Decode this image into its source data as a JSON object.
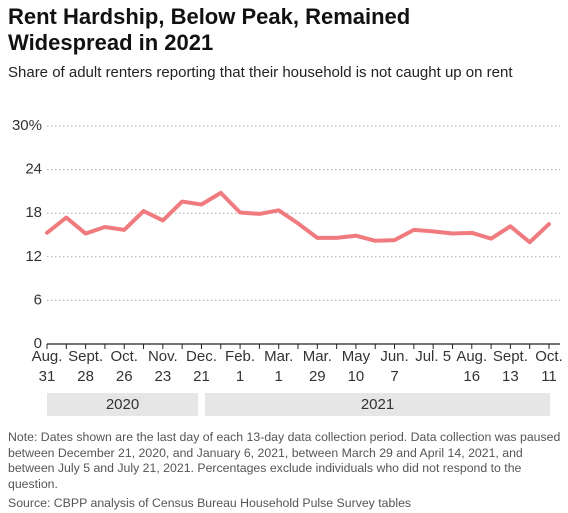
{
  "chart_data": {
    "type": "line",
    "title": "Rent Hardship, Below Peak, Remained Widespread in 2021",
    "subtitle": "Share of adult renters reporting that their household is not caught up on rent",
    "categories": [
      "Aug. 31",
      null,
      "Sept. 28",
      null,
      "Oct. 26",
      null,
      "Nov. 23",
      null,
      "Dec. 21",
      null,
      "Feb. 1",
      null,
      "Mar. 1",
      null,
      "Mar. 29",
      null,
      "May 10",
      null,
      "Jun. 7",
      null,
      "Jul. 5",
      null,
      "Aug. 16",
      null,
      "Sept. 13",
      null,
      "Oct. 11"
    ],
    "values": [
      15.3,
      17.4,
      15.2,
      16.1,
      15.7,
      18.3,
      17.0,
      19.6,
      19.2,
      20.8,
      18.1,
      17.9,
      18.4,
      16.6,
      14.6,
      14.6,
      14.9,
      14.2,
      14.3,
      15.7,
      15.5,
      15.2,
      15.3,
      14.5,
      16.2,
      14.0,
      16.5
    ],
    "color": "#f07b7f",
    "ylim": [
      0,
      30
    ],
    "yticks": [
      0,
      6,
      12,
      18,
      24,
      {
        "value": 30,
        "label": "30%"
      }
    ],
    "grid": true,
    "periods": [
      "2020",
      "2021"
    ],
    "note": "Note: Dates shown are the last day of each 13-day data collection period. Data collection was paused between December 21, 2020, and January 6, 2021, between March 29 and April 14, 2021, and between July 5 and July 21, 2021. Percentages exclude individuals who did not respond to the question.",
    "source": "Source: CBPP analysis of Census Bureau Household Pulse Survey tables"
  }
}
